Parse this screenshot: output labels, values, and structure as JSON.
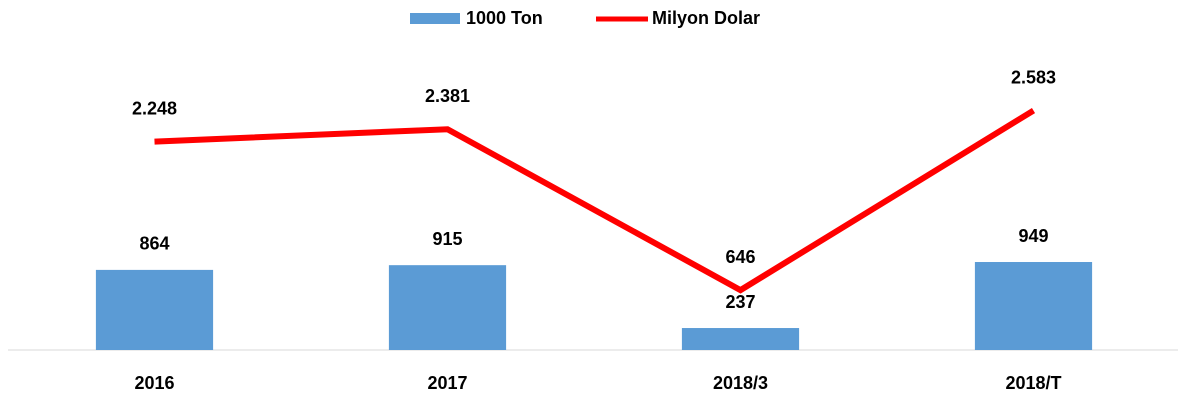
{
  "chart_data": {
    "type": "bar-line",
    "categories": [
      "2016",
      "2017",
      "2018/3",
      "2018/T"
    ],
    "series": [
      {
        "name": "1000 Ton",
        "type": "bar",
        "color": "#5b9bd5",
        "values": [
          864,
          915,
          237,
          949
        ]
      },
      {
        "name": "Milyon Dolar",
        "type": "line",
        "color": "#ff0000",
        "values": [
          2248,
          2381,
          646,
          2583
        ],
        "value_labels": [
          "2.248",
          "2.381",
          "646",
          "2.583"
        ]
      }
    ],
    "ylim": [
      0,
      3500
    ],
    "legend": "top"
  }
}
